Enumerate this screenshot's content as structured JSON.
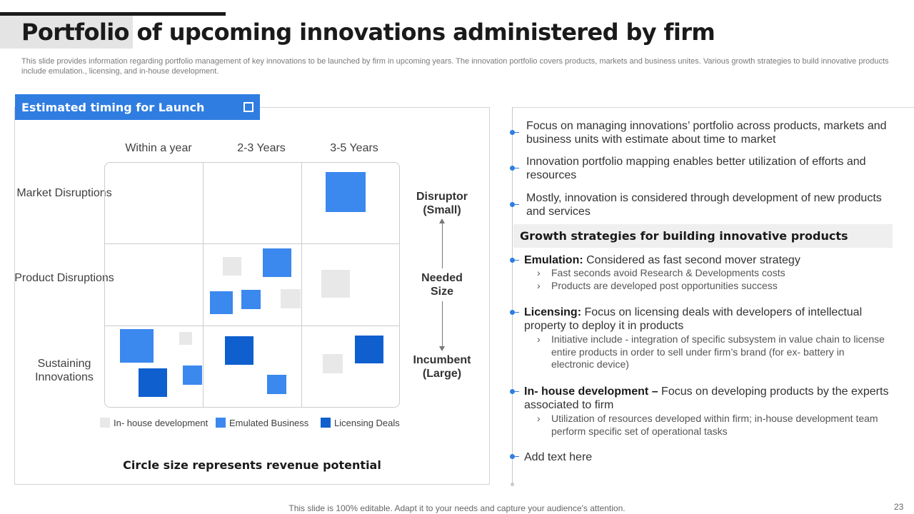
{
  "slide": {
    "title": "Portfolio of upcoming innovations administered by firm",
    "subtitle": "This slide provides information regarding portfolio management of key innovations to be launched by firm in upcoming years. The innovation portfolio covers products, markets and business unites. Various growth strategies to build innovative products include emulation., licensing, and in-house development.",
    "footer": "This slide is 100% editable. Adapt it to your needs and capture your audience's attention.",
    "page_number": "23"
  },
  "matrix": {
    "header": "Estimated timing for Launch",
    "columns": [
      "Within a year",
      "2-3 Years",
      "3-5 Years"
    ],
    "rows": [
      "Market Disruptions",
      "Product Disruptions",
      "Sustaining Innovations"
    ],
    "legend": [
      {
        "label": "In- house development",
        "color": "#e8e8e8"
      },
      {
        "label": "Emulated Business",
        "color": "#3b88ee"
      },
      {
        "label": "Licensing Deals",
        "color": "#0f5fcf"
      }
    ],
    "axis": {
      "top": "Disruptor (Small)",
      "middle": "Needed Size",
      "bottom": "Incumbent (Large)"
    },
    "caption": "Circle size represents revenue potential"
  },
  "right": {
    "intro": [
      "Focus on managing innovations’ portfolio across products, markets and business units with estimate about time to market",
      "Innovation  portfolio mapping enables better utilization of efforts and resources",
      "Mostly,  innovation is considered through  development of new products and services"
    ],
    "growth_header": "Growth strategies for building innovative products",
    "strategies": [
      {
        "name": "Emulation",
        "sep": ":",
        "desc": " Considered as fast second mover strategy",
        "subs": [
          "Fast seconds avoid Research & Developments costs",
          "Products are developed post opportunities success"
        ]
      },
      {
        "name": "Licensing",
        "sep": ":",
        "desc": " Focus on licensing deals with developers of intellectual property to deploy it in products",
        "subs": [
          "Initiative  include - integration of specific subsystem in value  chain to license entire products in order to sell under firm’s brand (for ex- battery in electronic device)"
        ]
      },
      {
        "name": "In- house development",
        "sep": " –",
        "desc": " Focus on developing products by the experts associated to firm",
        "subs": [
          "Utilization  of resources developed within firm; in-house development team perform specific set of operational tasks"
        ]
      }
    ],
    "add_text": "Add text here",
    "chevron": "›"
  }
}
